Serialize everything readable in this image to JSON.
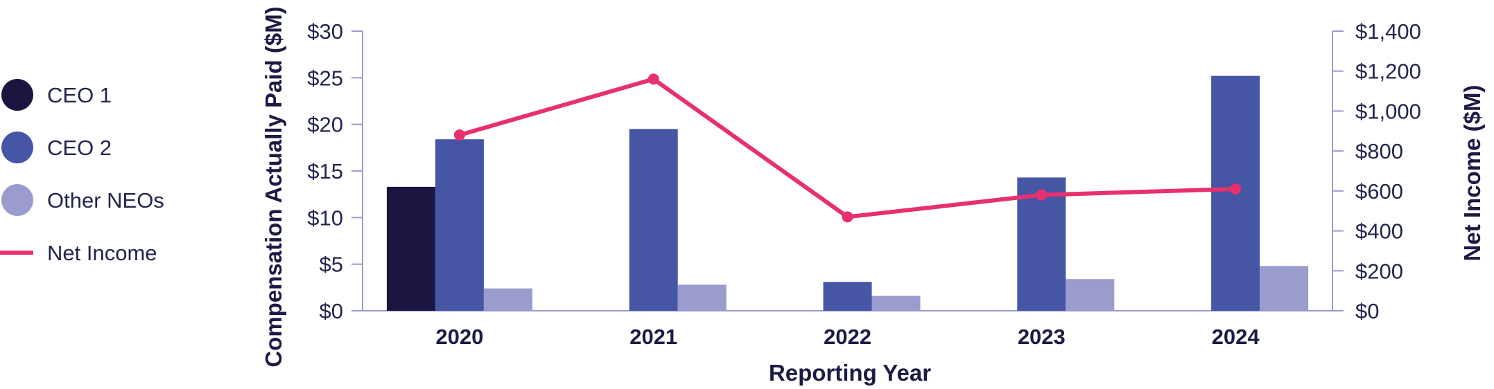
{
  "chart_data": {
    "type": "bar",
    "categories": [
      "2020",
      "2021",
      "2022",
      "2023",
      "2024"
    ],
    "series": [
      {
        "name": "CEO 1",
        "type": "bar",
        "axis": "left",
        "color": "#1b1640",
        "values": [
          13.3,
          null,
          null,
          null,
          null
        ]
      },
      {
        "name": "CEO 2",
        "type": "bar",
        "axis": "left",
        "color": "#4655a4",
        "values": [
          18.4,
          19.5,
          3.1,
          14.3,
          25.2
        ]
      },
      {
        "name": "Other NEOs",
        "type": "bar",
        "axis": "left",
        "color": "#9a9ccd",
        "values": [
          2.4,
          2.8,
          1.6,
          3.4,
          4.8
        ]
      },
      {
        "name": "Net Income",
        "type": "line",
        "axis": "right",
        "color": "#e8306e",
        "values": [
          880,
          1160,
          470,
          580,
          610
        ]
      }
    ],
    "xlabel": "Reporting Year",
    "ylabel": "Compensation Actually Paid ($M)",
    "y2label": "Net Income ($M)",
    "ylim": [
      0,
      30
    ],
    "y2lim": [
      0,
      1400
    ],
    "yticks": [
      "$0",
      "$5",
      "$10",
      "$15",
      "$20",
      "$25",
      "$30"
    ],
    "y2ticks": [
      "$0",
      "$200",
      "$400",
      "$600",
      "$800",
      "$1,000",
      "$1,200",
      "$1,400"
    ],
    "legend_position": "left",
    "grid": false,
    "axis_color": "#9a9ccd"
  }
}
